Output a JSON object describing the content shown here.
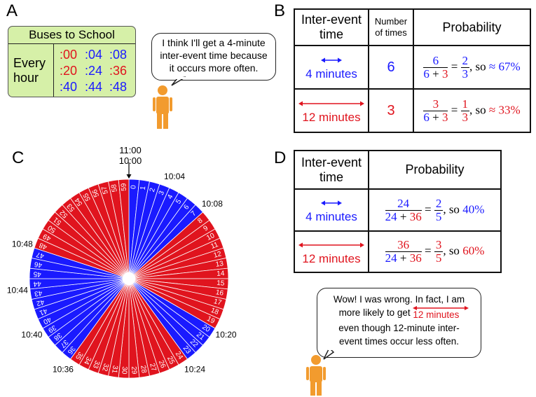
{
  "panels": {
    "a": "A",
    "b": "B",
    "c": "C",
    "d": "D"
  },
  "bus_schedule": {
    "title": "Buses to School",
    "row_label_line1": "Every",
    "row_label_line2": "hour",
    "times": [
      [
        ":00",
        ":04",
        ":08"
      ],
      [
        ":20",
        ":24",
        ":36"
      ],
      [
        ":40",
        ":44",
        ":48"
      ]
    ],
    "time_colors": [
      [
        "#e0141e",
        "#1a1aff",
        "#1a1aff"
      ],
      [
        "#e0141e",
        "#1a1aff",
        "#e0141e"
      ],
      [
        "#1a1aff",
        "#1a1aff",
        "#1a1aff"
      ]
    ]
  },
  "bubble_a": {
    "line1": "I think I'll get a 4-minute",
    "line2": "inter-event time because",
    "line3": "it occurs more often."
  },
  "table_b": {
    "header": {
      "col1_line1": "Inter-event",
      "col1_line2": "time",
      "col2_line1": "Number",
      "col2_line2": "of times",
      "col3": "Probability"
    },
    "rows": [
      {
        "label": "4 minutes",
        "count": "6",
        "num": "6",
        "den_a": "6",
        "plus": "+",
        "den_b": "3",
        "eq": "=",
        "res_num": "2",
        "res_den": "3",
        "so": ",  so",
        "approx": "≈ 67%"
      },
      {
        "label": "12 minutes",
        "count": "3",
        "num": "3",
        "den_a": "6",
        "plus": "+",
        "den_b": "3",
        "eq": "=",
        "res_num": "1",
        "res_den": "3",
        "so": ",  so",
        "approx": "≈ 33%"
      }
    ]
  },
  "clock": {
    "top_label_1": "11:00",
    "top_label_2": "10:00",
    "blue_minutes": [
      0,
      1,
      2,
      3,
      4,
      5,
      6,
      7,
      20,
      21,
      22,
      23,
      36,
      37,
      38,
      39,
      40,
      41,
      42,
      43,
      44,
      45,
      46,
      47
    ],
    "blue_color": "#1a1aff",
    "red_color": "#e0141e",
    "time_labels": [
      {
        "text": "10:04",
        "minute": 4
      },
      {
        "text": "10:08",
        "minute": 8
      },
      {
        "text": "10:20",
        "minute": 20
      },
      {
        "text": "10:24",
        "minute": 24
      },
      {
        "text": "10:36",
        "minute": 36
      },
      {
        "text": "10:40",
        "minute": 40
      },
      {
        "text": "10:44",
        "minute": 44
      },
      {
        "text": "10:48",
        "minute": 48
      }
    ]
  },
  "table_d": {
    "header": {
      "col1_line1": "Inter-event",
      "col1_line2": "time",
      "col2": "Probability"
    },
    "rows": [
      {
        "label": "4 minutes",
        "num": "24",
        "den_a": "24",
        "plus": "+",
        "den_b": "36",
        "eq": "=",
        "res_num": "2",
        "res_den": "5",
        "so": ",  so",
        "pct": "40%"
      },
      {
        "label": "12 minutes",
        "num": "36",
        "den_a": "24",
        "plus": "+",
        "den_b": "36",
        "eq": "=",
        "res_num": "3",
        "res_den": "5",
        "so": ",  so",
        "pct": "60%"
      }
    ]
  },
  "bubble_d": {
    "line1": "Wow! I was wrong. In fact, I am",
    "line2_a": "more likely to get",
    "line2_b": "12 minutes",
    "line3": "even though 12-minute inter-",
    "line4": "event times occur less often."
  }
}
